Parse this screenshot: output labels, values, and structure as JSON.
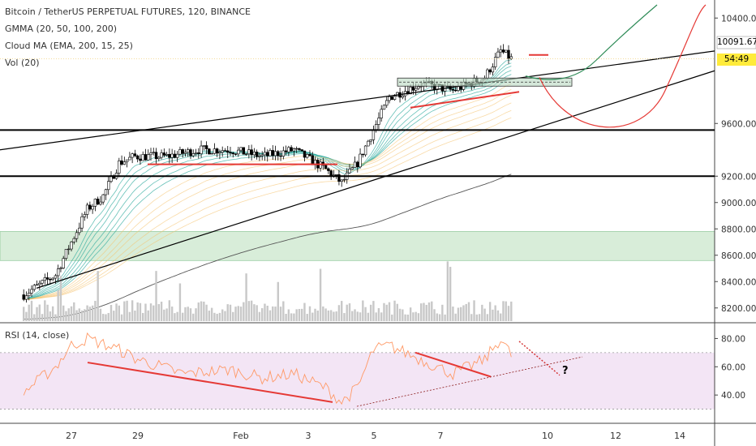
{
  "header": {
    "title": "Bitcoin / TetherUS PERPETUAL FUTURES, 120, BINANCE",
    "indicators": [
      "GMMA (20, 50, 100, 200)",
      "Cloud MA (EMA, 200, 15, 25)",
      "Vol (20)"
    ],
    "rsi_label": "RSI (14, close)"
  },
  "price_tags": {
    "last_price": "10091.67",
    "countdown": "54:49",
    "badge_color": "#ffeb3b"
  },
  "annotation": {
    "question": "?"
  },
  "colors": {
    "candle": "#000000",
    "green_band": "#26a69a",
    "slow_band": "#f5c26b",
    "cloud_ma": "#555555",
    "trendline": "#000000",
    "support": "#e53935",
    "projection_up": "#2e8b57",
    "projection_down": "#e53935",
    "demand_zone": "#c8e6c9",
    "rsi_line": "#ff9966",
    "rsi_zone": "#f3e5f5",
    "volume": "#c8c8c8"
  },
  "chart_data": [
    {
      "type": "candlestick",
      "title": "Bitcoin / TetherUS PERPETUAL FUTURES, 120, BINANCE",
      "ylim": [
        8100,
        10500
      ],
      "y_ticks": [
        8200,
        8400,
        8600,
        8800,
        9000,
        9200,
        9600,
        10400
      ],
      "y_tick_labels": [
        "8200.00",
        "8400.00",
        "8600.00",
        "8800.00",
        "9000.00",
        "9200.00",
        "9600.00",
        "10400.00"
      ],
      "x_ticks": [
        "27",
        "29",
        "Feb",
        "3",
        "5",
        "7",
        "10",
        "12",
        "14"
      ],
      "price_anchors": [
        [
          "Jan 25 12:00",
          8300
        ],
        [
          "Jan 26 12:00",
          8450
        ],
        [
          "Jan 27 00:00",
          8700
        ],
        [
          "Jan 27 12:00",
          8950
        ],
        [
          "Jan 28 00:00",
          9050
        ],
        [
          "Jan 28 12:00",
          9300
        ],
        [
          "Jan 29 00:00",
          9350
        ],
        [
          "Jan 30 00:00",
          9350
        ],
        [
          "Jan 31 00:00",
          9400
        ],
        [
          "Feb 01 00:00",
          9400
        ],
        [
          "Feb 02 00:00",
          9350
        ],
        [
          "Feb 03 00:00",
          9400
        ],
        [
          "Feb 04 00:00",
          9250
        ],
        [
          "Feb 04 12:00",
          9150
        ],
        [
          "Feb 05 00:00",
          9300
        ],
        [
          "Feb 05 12:00",
          9550
        ],
        [
          "Feb 06 00:00",
          9800
        ],
        [
          "Feb 07 00:00",
          9900
        ],
        [
          "Feb 08 00:00",
          9850
        ],
        [
          "Feb 09 00:00",
          9950
        ],
        [
          "Feb 09 12:00",
          10150
        ],
        [
          "Feb 09 20:00",
          10091.67
        ]
      ],
      "last_price": 10091.67,
      "horizontal_levels": [
        9550,
        9200
      ],
      "demand_zone": [
        8560,
        8780
      ],
      "resistance_box": [
        9880,
        9920
      ],
      "rsi": {
        "ylim": [
          20,
          90
        ],
        "y_ticks": [
          40,
          60,
          80
        ],
        "y_tick_labels": [
          "40.00",
          "60.00",
          "80.00"
        ],
        "band": [
          30,
          70
        ],
        "anchors": [
          [
            "Jan 25 12:00",
            42
          ],
          [
            "Jan 26 12:00",
            60
          ],
          [
            "Jan 27 00:00",
            75
          ],
          [
            "Jan 27 12:00",
            80
          ],
          [
            "Jan 28 12:00",
            72
          ],
          [
            "Jan 29 00:00",
            66
          ],
          [
            "Jan 30 12:00",
            55
          ],
          [
            "Feb 01 00:00",
            58
          ],
          [
            "Feb 02 00:00",
            52
          ],
          [
            "Feb 03 00:00",
            55
          ],
          [
            "Feb 04 00:00",
            45
          ],
          [
            "Feb 04 12:00",
            35
          ],
          [
            "Feb 05 00:00",
            45
          ],
          [
            "Feb 05 12:00",
            72
          ],
          [
            "Feb 06 00:00",
            75
          ],
          [
            "Feb 07 00:00",
            65
          ],
          [
            "Feb 08 00:00",
            55
          ],
          [
            "Feb 09 00:00",
            65
          ],
          [
            "Feb 09 12:00",
            80
          ],
          [
            "Feb 09 20:00",
            68
          ]
        ]
      },
      "volume_label": "Vol (20)"
    }
  ]
}
